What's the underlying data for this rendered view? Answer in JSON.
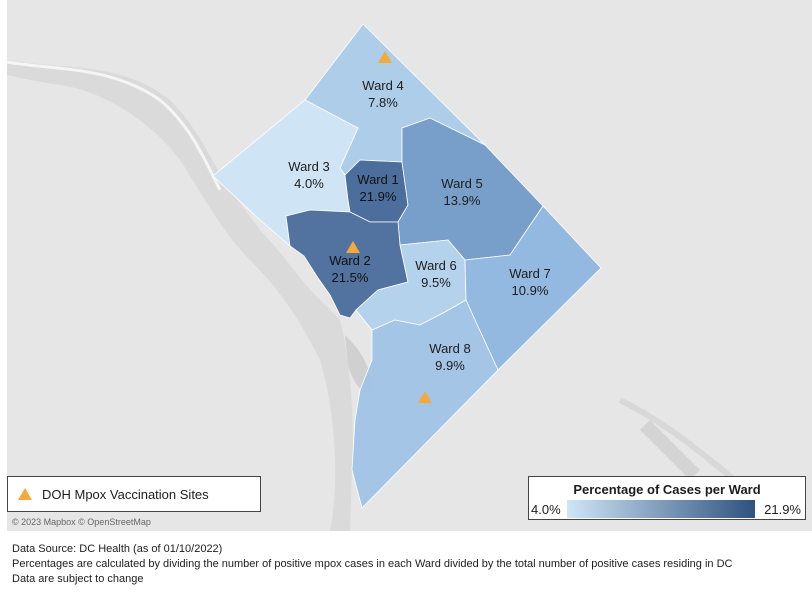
{
  "map": {
    "wards": [
      {
        "name": "Ward 4",
        "percent": "7.8%",
        "value": 7.8,
        "color": "#a8cbe9"
      },
      {
        "name": "Ward 3",
        "percent": "4.0%",
        "value": 4.0,
        "color": "#cde4f6"
      },
      {
        "name": "Ward 1",
        "percent": "21.9%",
        "value": 21.9,
        "color": "#3e6496"
      },
      {
        "name": "Ward 5",
        "percent": "13.9%",
        "value": 13.9,
        "color": "#6f99c8"
      },
      {
        "name": "Ward 2",
        "percent": "21.5%",
        "value": 21.5,
        "color": "#45699a"
      },
      {
        "name": "Ward 6",
        "percent": "9.5%",
        "value": 9.5,
        "color": "#b0d0ec"
      },
      {
        "name": "Ward 7",
        "percent": "10.9%",
        "value": 10.9,
        "color": "#8cb5df"
      },
      {
        "name": "Ward 8",
        "percent": "9.9%",
        "value": 9.9,
        "color": "#9ec2e6"
      }
    ],
    "vaccination_site_color": "#f6a93b",
    "attribution": "© 2023 Mapbox © OpenStreetMap"
  },
  "legend_sites": {
    "label": "DOH Mpox Vaccination Sites",
    "icon": "triangle-icon"
  },
  "legend_scale": {
    "title": "Percentage of Cases per Ward",
    "min": "4.0%",
    "max": "21.9%",
    "color_low": "#cfe6f7",
    "color_high": "#2f527f"
  },
  "notes": {
    "source": "Data Source: DC Health (as of 01/10/2022)",
    "method": "Percentages are calculated by dividing the number of positive mpox cases in each Ward divided by the total number of positive cases residing in DC",
    "disclaimer": "Data are subject to change"
  }
}
